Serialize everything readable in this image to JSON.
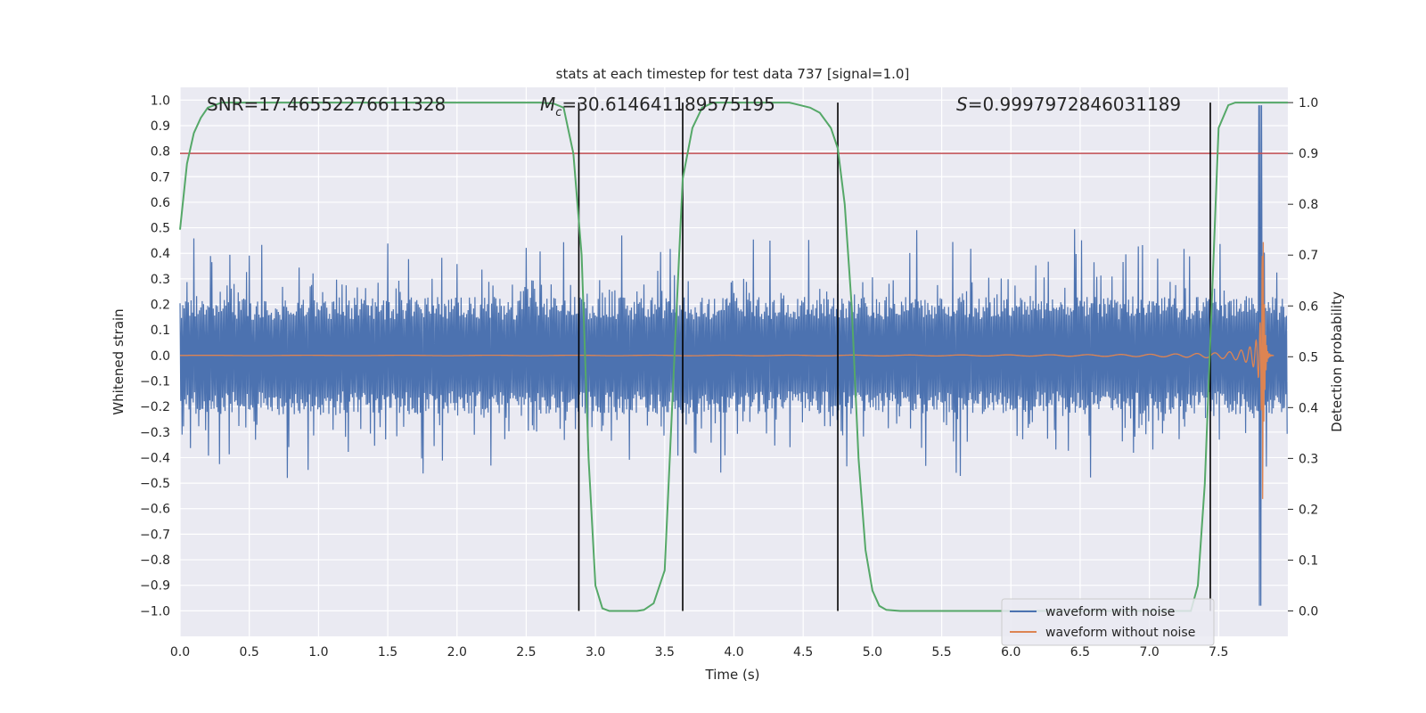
{
  "chart_data": {
    "type": "line",
    "title": "stats at each timestep for test data 737 [signal=1.0]",
    "xlabel": "Time (s)",
    "ylabel": "Whitened strain",
    "y2label": "Detection probability",
    "xlim": [
      0.0,
      8.0
    ],
    "ylim": [
      -1.1,
      1.05
    ],
    "y2lim": [
      -0.05,
      1.03
    ],
    "xticks": [
      0.0,
      0.5,
      1.0,
      1.5,
      2.0,
      2.5,
      3.0,
      3.5,
      4.0,
      4.5,
      5.0,
      5.5,
      6.0,
      6.5,
      7.0,
      7.5
    ],
    "xtick_labels": [
      "0.0",
      "0.5",
      "1.0",
      "1.5",
      "2.0",
      "2.5",
      "3.0",
      "3.5",
      "4.0",
      "4.5",
      "5.0",
      "5.5",
      "6.0",
      "6.5",
      "7.0",
      "7.5"
    ],
    "yticks": [
      1.0,
      0.9,
      0.8,
      0.7,
      0.6,
      0.5,
      0.4,
      0.3,
      0.2,
      0.1,
      0.0,
      -0.1,
      -0.2,
      -0.3,
      -0.4,
      -0.5,
      -0.6,
      -0.7,
      -0.8,
      -0.9,
      -1.0
    ],
    "ytick_labels": [
      "1.0",
      "0.9",
      "0.8",
      "0.7",
      "0.6",
      "0.5",
      "0.4",
      "0.3",
      "0.2",
      "0.1",
      "0.0",
      "−0.1",
      "−0.2",
      "−0.3",
      "−0.4",
      "−0.5",
      "−0.6",
      "−0.7",
      "−0.8",
      "−0.9",
      "−1.0"
    ],
    "y2ticks": [
      1.0,
      0.9,
      0.8,
      0.7,
      0.6,
      0.5,
      0.4,
      0.3,
      0.2,
      0.1,
      0.0
    ],
    "y2tick_labels": [
      "1.0",
      "0.9",
      "0.8",
      "0.7",
      "0.6",
      "0.5",
      "0.4",
      "0.3",
      "0.2",
      "0.1",
      "0.0"
    ],
    "threshold_y2": 0.9,
    "vertical_lines_x": [
      2.88,
      3.63,
      4.75,
      7.44
    ],
    "annotations": {
      "snr": "SNR=17.46552276611328",
      "mc_symbol": "M",
      "mc_sub": "c",
      "mc_value": "=30.614641189575195",
      "s_symbol": "S",
      "s_value": "=0.9997972846031189"
    },
    "detection_probability": {
      "x": [
        0.0,
        0.05,
        0.1,
        0.15,
        0.2,
        0.3,
        0.4,
        2.6,
        2.7,
        2.77,
        2.84,
        2.9,
        2.95,
        3.0,
        3.05,
        3.1,
        3.2,
        3.3,
        3.35,
        3.42,
        3.5,
        3.57,
        3.63,
        3.7,
        3.77,
        3.85,
        4.0,
        4.4,
        4.55,
        4.62,
        4.7,
        4.75,
        4.8,
        4.85,
        4.9,
        4.95,
        5.0,
        5.05,
        5.1,
        5.2,
        5.5,
        7.3,
        7.35,
        7.4,
        7.45,
        7.5,
        7.57,
        7.62,
        7.7,
        7.9,
        8.0
      ],
      "y": [
        0.75,
        0.88,
        0.94,
        0.97,
        0.99,
        1.0,
        1.0,
        1.0,
        0.998,
        0.99,
        0.9,
        0.7,
        0.3,
        0.05,
        0.005,
        0.0,
        0.0,
        0.0,
        0.002,
        0.015,
        0.08,
        0.5,
        0.85,
        0.95,
        0.99,
        1.0,
        1.0,
        1.0,
        0.99,
        0.98,
        0.95,
        0.91,
        0.8,
        0.6,
        0.3,
        0.12,
        0.04,
        0.01,
        0.002,
        0.0,
        0.0,
        0.0,
        0.05,
        0.25,
        0.6,
        0.95,
        0.995,
        1.0,
        1.0,
        1.0,
        1.0
      ]
    },
    "series": [
      {
        "name": "waveform with noise",
        "color": "#4c72b0"
      },
      {
        "name": "waveform without noise",
        "color": "#dd8452"
      }
    ],
    "probability_color": "#55a868",
    "threshold_color": "#c44e52",
    "legend_position": "lower-right"
  }
}
